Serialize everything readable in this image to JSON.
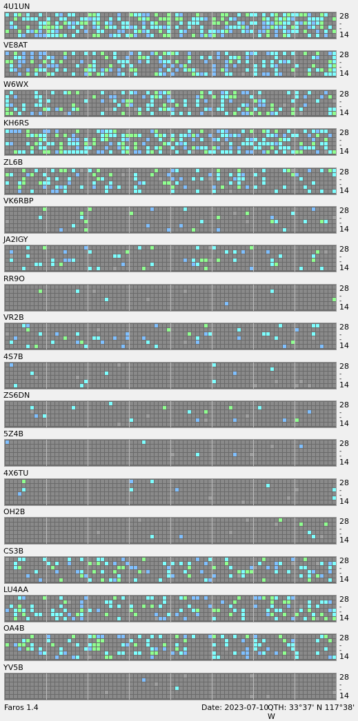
{
  "app": {
    "version": "Faros 1.4"
  },
  "scale_labels": {
    "high": "28",
    "mid": "-",
    "low": "14"
  },
  "footer": {
    "date": "Date: 2023-07-10",
    "qth": "QTH: 33°37' N  117°38' W"
  },
  "colors": {
    "background": "#f0f0f0",
    "grid_bg": "#6a6a6a",
    "cell_gray": "#8a8a8a",
    "cell_cyan": "#7fffff",
    "cell_lightblue": "#80c0ff",
    "cell_green": "#90ff90",
    "cell_blue": "#5050e0"
  },
  "stations": [
    {
      "callsign": "4U1UN",
      "activity": 0.55
    },
    {
      "callsign": "VE8AT",
      "activity": 0.35
    },
    {
      "callsign": "W6WX",
      "activity": 0.3
    },
    {
      "callsign": "KH6RS",
      "activity": 0.45
    },
    {
      "callsign": "ZL6B",
      "activity": 0.22
    },
    {
      "callsign": "VK6RBP",
      "activity": 0.08
    },
    {
      "callsign": "JA2IGY",
      "activity": 0.12
    },
    {
      "callsign": "RR9O",
      "activity": 0.01
    },
    {
      "callsign": "VR2B",
      "activity": 0.08
    },
    {
      "callsign": "4S7B",
      "activity": 0.01
    },
    {
      "callsign": "ZS6DN",
      "activity": 0.04
    },
    {
      "callsign": "5Z4B",
      "activity": 0.01
    },
    {
      "callsign": "4X6TU",
      "activity": 0.02
    },
    {
      "callsign": "OH2B",
      "activity": 0.01
    },
    {
      "callsign": "CS3B",
      "activity": 0.2
    },
    {
      "callsign": "LU4AA",
      "activity": 0.25
    },
    {
      "callsign": "OA4B",
      "activity": 0.25
    },
    {
      "callsign": "YV5B",
      "activity": 0.005
    }
  ]
}
